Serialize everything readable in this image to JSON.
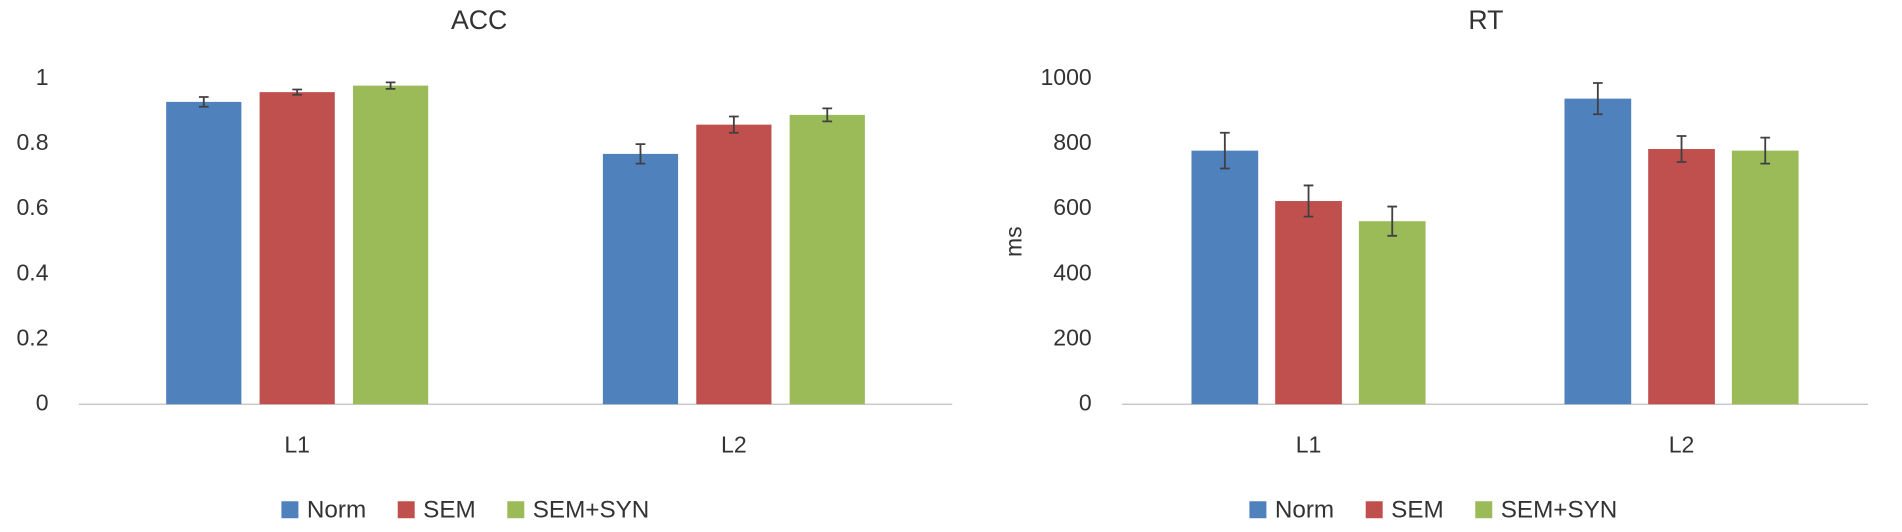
{
  "chart_data": [
    {
      "type": "bar",
      "title": "ACC",
      "categories": [
        "L1",
        "L2"
      ],
      "series": [
        {
          "name": "Norm",
          "color": "#4f81bd",
          "values": [
            0.93,
            0.77
          ],
          "errors": [
            0.015,
            0.03
          ]
        },
        {
          "name": "SEM",
          "color": "#c0504d",
          "values": [
            0.96,
            0.86
          ],
          "errors": [
            0.008,
            0.025
          ]
        },
        {
          "name": "SEM+SYN",
          "color": "#9bbb59",
          "values": [
            0.98,
            0.89
          ],
          "errors": [
            0.01,
            0.02
          ]
        }
      ],
      "ylim": [
        0,
        1
      ],
      "yticks": [
        0,
        0.2,
        0.4,
        0.6,
        0.8,
        1
      ],
      "grid": false
    },
    {
      "type": "bar",
      "title": "RT",
      "y_label": "ms",
      "categories": [
        "L1",
        "L2"
      ],
      "series": [
        {
          "name": "Norm",
          "color": "#4f81bd",
          "values": [
            780,
            940
          ],
          "errors": [
            55,
            48
          ]
        },
        {
          "name": "SEM",
          "color": "#c0504d",
          "values": [
            625,
            785
          ],
          "errors": [
            48,
            40
          ]
        },
        {
          "name": "SEM+SYN",
          "color": "#9bbb59",
          "values": [
            563,
            780
          ],
          "errors": [
            45,
            40
          ]
        }
      ],
      "ylim": [
        0,
        1000
      ],
      "yticks": [
        0,
        200,
        400,
        600,
        800,
        1000
      ],
      "grid": false
    }
  ]
}
